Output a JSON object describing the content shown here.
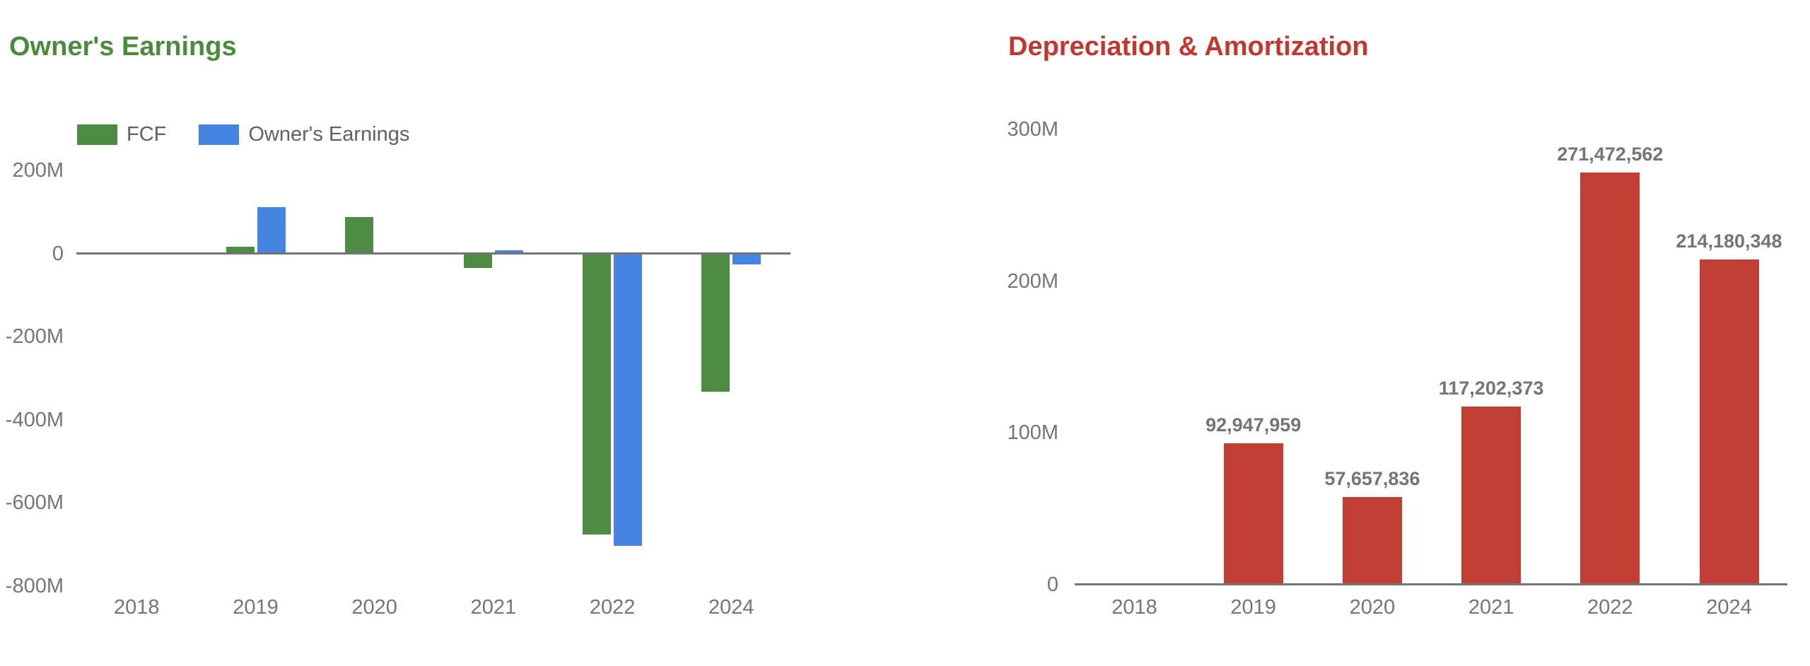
{
  "chart_data": [
    {
      "type": "bar",
      "title": "Owner's Earnings",
      "title_color": "#4A8B3E",
      "value_unit": "millions",
      "grid": false,
      "legend_position": "top-left",
      "legend": [
        {
          "label": "FCF",
          "color": "#4E8B43"
        },
        {
          "label": "Owner's Earnings",
          "color": "#4584E0"
        }
      ],
      "categories": [
        "2018",
        "2019",
        "2020",
        "2021",
        "2022",
        "2024"
      ],
      "series": [
        {
          "name": "FCF",
          "color": "#4E8B43",
          "values": [
            null,
            16,
            87,
            -35,
            -677,
            -332
          ]
        },
        {
          "name": "Owner's Earnings",
          "color": "#4584E0",
          "values": [
            null,
            112,
            3,
            7,
            -704,
            -27
          ]
        }
      ],
      "ylim": [
        -800,
        200
      ],
      "y_ticks": [
        {
          "label": "200M",
          "value": 200
        },
        {
          "label": "0",
          "value": 0
        },
        {
          "label": "-200M",
          "value": -200
        },
        {
          "label": "-400M",
          "value": -400
        },
        {
          "label": "-600M",
          "value": -600
        },
        {
          "label": "-800M",
          "value": -800
        }
      ],
      "xlabel": "",
      "ylabel": ""
    },
    {
      "type": "bar",
      "title": "Depreciation & Amortization",
      "title_color": "#C23730",
      "value_unit": "absolute",
      "grid": false,
      "legend": [],
      "categories": [
        "2018",
        "2019",
        "2020",
        "2021",
        "2022",
        "2024"
      ],
      "series": [
        {
          "name": "Depreciation & Amortization",
          "color": "#C23F36",
          "values": [
            null,
            92947959,
            57657836,
            117202373,
            271472562,
            214180348
          ]
        }
      ],
      "data_labels": [
        "",
        "92,947,959",
        "57,657,836",
        "117,202,373",
        "271,472,562",
        "214,180,348"
      ],
      "ylim": [
        0,
        300000000
      ],
      "y_ticks": [
        {
          "label": "300M",
          "value": 300000000
        },
        {
          "label": "200M",
          "value": 200000000
        },
        {
          "label": "100M",
          "value": 100000000
        },
        {
          "label": "0",
          "value": 0
        }
      ],
      "xlabel": "",
      "ylabel": ""
    }
  ]
}
